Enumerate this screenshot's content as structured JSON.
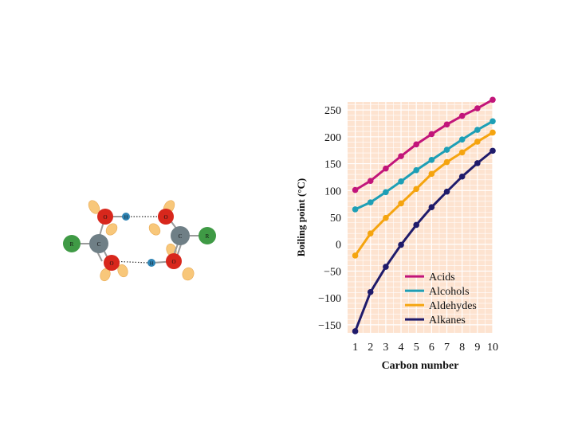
{
  "diagram": {
    "atoms": {
      "r": "R",
      "c": "C",
      "o": "O",
      "h": "H"
    }
  },
  "chart_data": {
    "type": "line",
    "xlabel": "Carbon number",
    "ylabel": "Boiling point (°C)",
    "x": [
      1,
      2,
      3,
      4,
      5,
      6,
      7,
      8,
      9,
      10
    ],
    "xticks": [
      "1",
      "2",
      "3",
      "4",
      "5",
      "6",
      "7",
      "8",
      "9",
      "10"
    ],
    "yticks": [
      "250",
      "200",
      "150",
      "100",
      "50",
      "0",
      "−50",
      "−100",
      "−150"
    ],
    "ytick_values": [
      250,
      200,
      150,
      100,
      50,
      0,
      -50,
      -100,
      -150
    ],
    "xlim": [
      0.5,
      10
    ],
    "ylim": [
      -165,
      265
    ],
    "grid": true,
    "legend_position": "lower-right",
    "series": [
      {
        "name": "Acids",
        "color": "#c2157a",
        "values": [
          101,
          118,
          141,
          164,
          186,
          205,
          223,
          239,
          253,
          269
        ]
      },
      {
        "name": "Alcohols",
        "color": "#1e9fb6",
        "values": [
          65,
          78,
          97,
          117,
          138,
          157,
          176,
          195,
          213,
          229
        ]
      },
      {
        "name": "Aldehydes",
        "color": "#f5a40f",
        "values": [
          -21,
          20,
          49,
          76,
          103,
          131,
          153,
          171,
          191,
          208
        ]
      },
      {
        "name": "Alkanes",
        "color": "#1f1b6b",
        "values": [
          -162,
          -89,
          -42,
          -1,
          36,
          69,
          98,
          126,
          151,
          174
        ]
      }
    ],
    "background_color": "#fde3d0",
    "grid_color": "#ffffff"
  }
}
